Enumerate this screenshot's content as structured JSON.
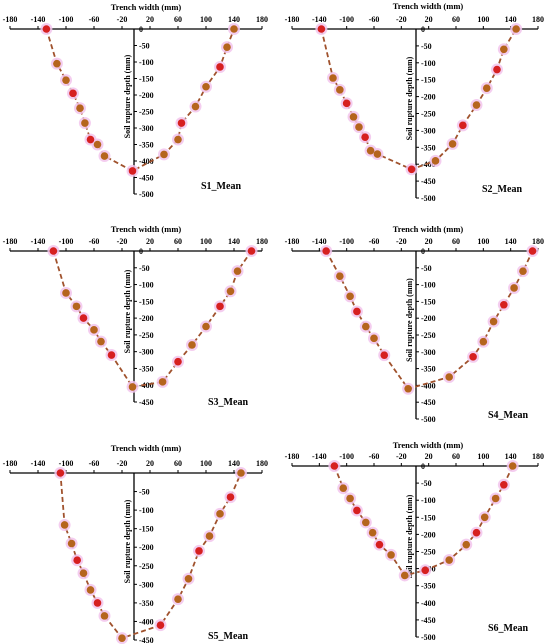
{
  "colors": {
    "line": "#a0522d",
    "point": "#b5651d",
    "point_alt": "#d62020",
    "halo": "#f2c4ec"
  },
  "chart_data": [
    {
      "type": "line",
      "title": "S1_Mean",
      "xlabel": "Trench width (mm)",
      "ylabel": "Soil rupture depth (mm)",
      "xlim": [
        -180,
        180
      ],
      "ylim": [
        -500,
        0
      ],
      "xticks": [
        -180,
        -140,
        -100,
        -60,
        -20,
        20,
        60,
        100,
        140,
        180
      ],
      "yticks": [
        0,
        -50,
        -100,
        -150,
        -200,
        -250,
        -300,
        -350,
        -400,
        -450,
        -500
      ],
      "series": [
        {
          "x": [
            -128,
            -113,
            -100,
            -90,
            -80,
            -73,
            -65,
            -55,
            -45,
            -5,
            40,
            60,
            65,
            85,
            100,
            120,
            130,
            140
          ],
          "y": [
            0,
            -105,
            -155,
            -195,
            -240,
            -285,
            -335,
            -350,
            -385,
            -430,
            -380,
            -335,
            -285,
            -235,
            -175,
            -115,
            -55,
            0
          ]
        }
      ]
    },
    {
      "type": "line",
      "title": "S2_Mean",
      "xlabel": "Trench width (mm)",
      "ylabel": "Soil rupture depth (mm)",
      "xlim": [
        -180,
        180
      ],
      "ylim": [
        -500,
        0
      ],
      "xticks": [
        -180,
        -140,
        -100,
        -60,
        -20,
        20,
        60,
        100,
        140,
        180
      ],
      "yticks": [
        0,
        -50,
        -100,
        -150,
        -200,
        -250,
        -300,
        -350,
        -400,
        -450,
        -500
      ],
      "series": [
        {
          "x": [
            -137,
            -120,
            -110,
            -100,
            -90,
            -82,
            -73,
            -65,
            -55,
            -5,
            30,
            55,
            70,
            90,
            105,
            120,
            130,
            148
          ],
          "y": [
            0,
            -145,
            -180,
            -220,
            -260,
            -290,
            -320,
            -360,
            -370,
            -415,
            -390,
            -340,
            -285,
            -225,
            -175,
            -120,
            -60,
            0
          ]
        }
      ]
    },
    {
      "type": "line",
      "title": "S3_Mean",
      "xlabel": "Trench width (mm)",
      "ylabel": "Soil rupture depth (mm)",
      "xlim": [
        -180,
        180
      ],
      "ylim": [
        -450,
        0
      ],
      "xticks": [
        -180,
        -140,
        -100,
        -60,
        -20,
        20,
        60,
        100,
        140,
        180
      ],
      "yticks": [
        0,
        -50,
        -100,
        -150,
        -200,
        -250,
        -300,
        -350,
        -400,
        -450
      ],
      "series": [
        {
          "x": [
            -118,
            -100,
            -85,
            -75,
            -60,
            -50,
            -35,
            -5,
            38,
            60,
            80,
            100,
            120,
            135,
            145,
            165
          ],
          "y": [
            0,
            -125,
            -165,
            -200,
            -235,
            -270,
            -310,
            -405,
            -390,
            -330,
            -280,
            -225,
            -165,
            -120,
            -60,
            0
          ]
        }
      ]
    },
    {
      "type": "line",
      "title": "S4_Mean",
      "xlabel": "Trench width (mm)",
      "ylabel": "Soil rupture depth (mm)",
      "xlim": [
        -180,
        180
      ],
      "ylim": [
        -500,
        0
      ],
      "xticks": [
        -180,
        -140,
        -100,
        -60,
        -20,
        20,
        60,
        100,
        140,
        180
      ],
      "yticks": [
        0,
        -50,
        -100,
        -150,
        -200,
        -250,
        -300,
        -350,
        -400,
        -450,
        -500
      ],
      "series": [
        {
          "x": [
            -130,
            -110,
            -95,
            -85,
            -72,
            -60,
            -45,
            -10,
            50,
            85,
            100,
            115,
            130,
            145,
            158,
            172
          ],
          "y": [
            0,
            -75,
            -135,
            -180,
            -225,
            -260,
            -310,
            -410,
            -375,
            -315,
            -270,
            -210,
            -160,
            -110,
            -60,
            0
          ]
        }
      ]
    },
    {
      "type": "line",
      "title": "S5_Mean",
      "xlabel": "Trench width (mm)",
      "ylabel": "Soil rupture depth (mm)",
      "xlim": [
        -180,
        180
      ],
      "ylim": [
        -450,
        0
      ],
      "xticks": [
        -180,
        -140,
        -100,
        -60,
        -20,
        20,
        60,
        100,
        140,
        180
      ],
      "yticks": [
        -50,
        -100,
        -150,
        -200,
        -250,
        -300,
        -350,
        -400,
        -450
      ],
      "series": [
        {
          "x": [
            -108,
            -102,
            -92,
            -84,
            -75,
            -65,
            -55,
            -45,
            -20,
            35,
            60,
            75,
            90,
            105,
            120,
            135,
            150
          ],
          "y": [
            0,
            -140,
            -190,
            -235,
            -270,
            -315,
            -350,
            -385,
            -445,
            -410,
            -340,
            -285,
            -210,
            -170,
            -110,
            -65,
            0
          ]
        }
      ]
    },
    {
      "type": "line",
      "title": "S6_Mean",
      "xlabel": "Trench width (mm)",
      "ylabel": "Soil rupture depth (mm)",
      "xlim": [
        -180,
        180
      ],
      "ylim": [
        -500,
        0
      ],
      "xticks": [
        -180,
        -140,
        -100,
        -60,
        -20,
        20,
        60,
        100,
        140,
        180
      ],
      "yticks": [
        0,
        -50,
        -100,
        -150,
        -200,
        -250,
        -300,
        -350,
        -400,
        -450,
        -500
      ],
      "series": [
        {
          "x": [
            -118,
            -105,
            -95,
            -85,
            -72,
            -62,
            -52,
            -35,
            -15,
            15,
            50,
            75,
            90,
            102,
            118,
            130,
            143
          ],
          "y": [
            0,
            -65,
            -95,
            -130,
            -165,
            -195,
            -230,
            -260,
            -320,
            -305,
            -275,
            -230,
            -195,
            -150,
            -95,
            -55,
            0
          ]
        }
      ]
    }
  ]
}
